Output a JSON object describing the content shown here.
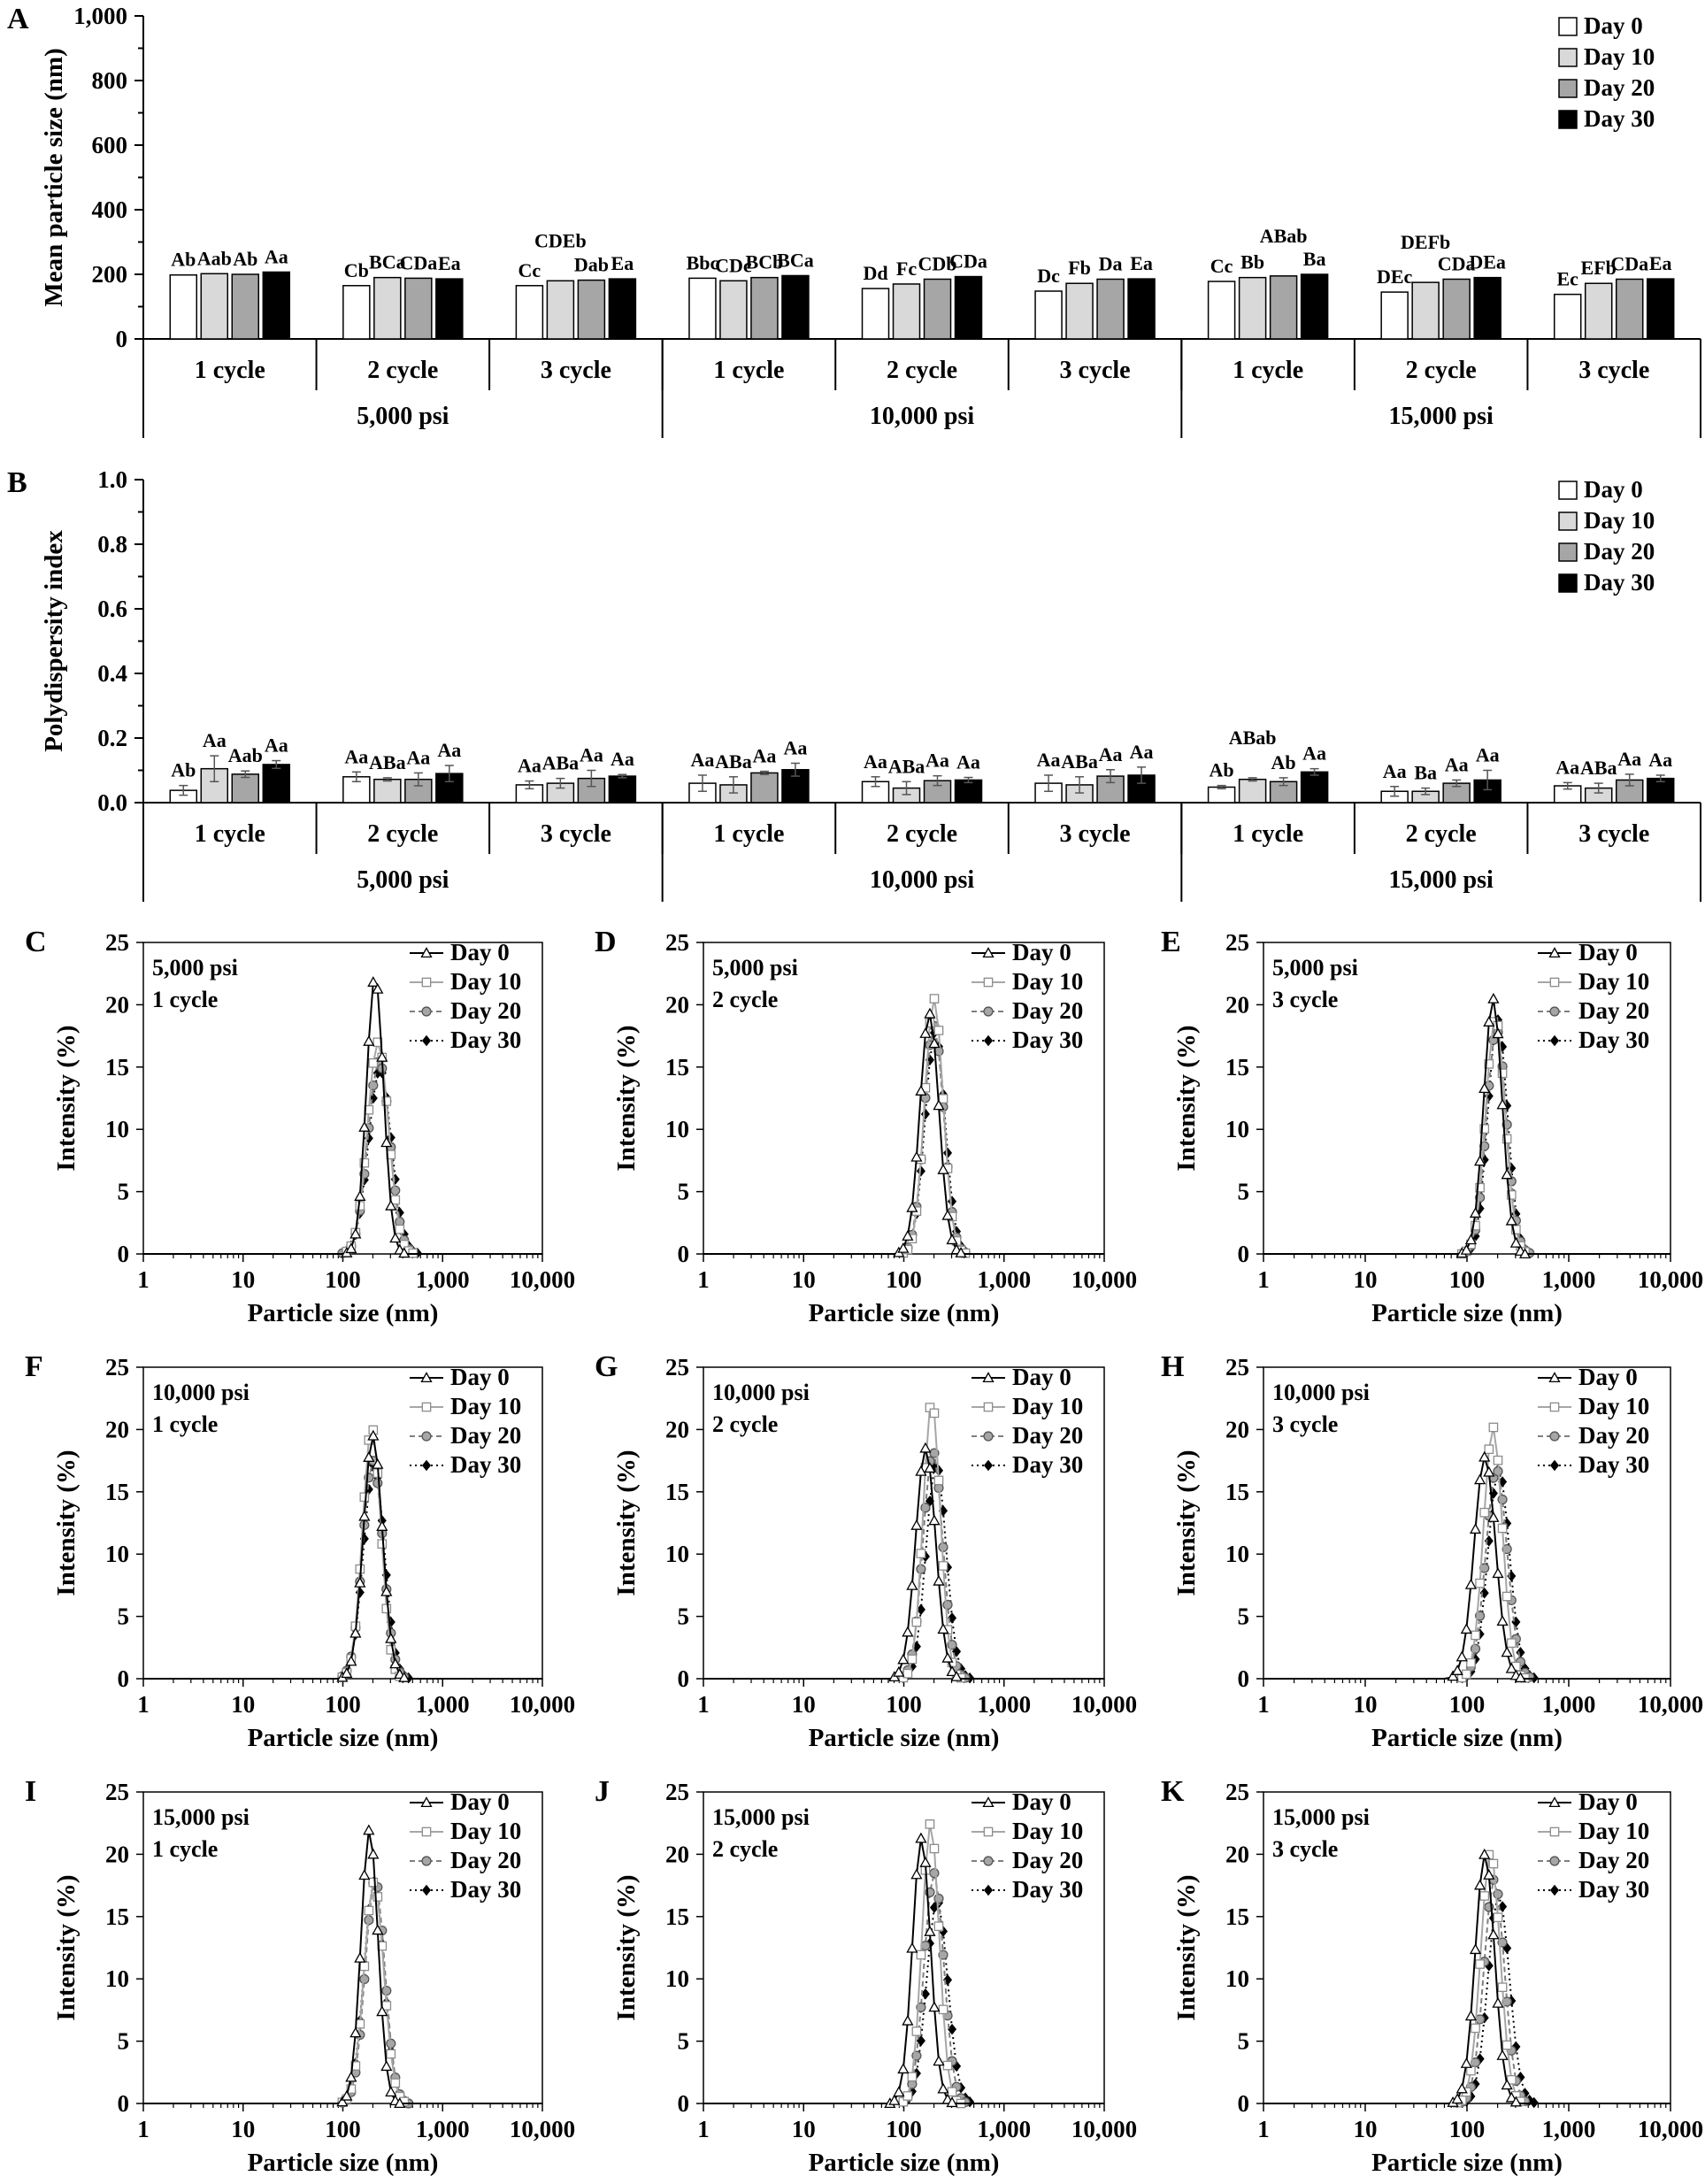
{
  "figure": {
    "bar_panels": [
      "A",
      "B"
    ],
    "line_panels": [
      "C",
      "D",
      "E",
      "F",
      "G",
      "H",
      "I",
      "J",
      "K"
    ]
  },
  "legend": [
    "Day 0",
    "Day 10",
    "Day 20",
    "Day 30"
  ],
  "colors": {
    "bar_fills": [
      "#ffffff",
      "#d9d9d9",
      "#a6a6a6",
      "#000000"
    ],
    "line_day0": "#000000",
    "line_day10": "#a6a6a6",
    "line_day20": "#7f7f7f",
    "line_day30": "#000000"
  },
  "chart_data": [
    {
      "panel": "A",
      "type": "bar",
      "ylabel": "Mean particle size (nm)",
      "ylim": [
        0,
        1000
      ],
      "yticks": [
        "0",
        "200",
        "400",
        "600",
        "800",
        "1,000"
      ],
      "cycles": [
        "1 cycle",
        "2 cycle",
        "3 cycle",
        "1 cycle",
        "2 cycle",
        "3 cycle",
        "1 cycle",
        "2 cycle",
        "3 cycle"
      ],
      "pressures": [
        "5,000 psi",
        "10,000 psi",
        "15,000 psi"
      ],
      "legend": "top-right",
      "series": [
        {
          "name": "Day 0",
          "values": [
            198,
            165,
            165,
            188,
            156,
            148,
            178,
            145,
            138
          ]
        },
        {
          "name": "Day 10",
          "values": [
            202,
            190,
            180,
            180,
            170,
            172,
            190,
            175,
            172
          ]
        },
        {
          "name": "Day 20",
          "values": [
            200,
            188,
            182,
            190,
            185,
            185,
            195,
            185,
            185
          ]
        },
        {
          "name": "Day 30",
          "values": [
            207,
            186,
            186,
            196,
            193,
            186,
            200,
            190,
            186
          ]
        }
      ],
      "labels": [
        [
          "Ab",
          "Aab",
          "Ab",
          "Aa"
        ],
        [
          "Cb",
          "BCa",
          "CDa",
          "Ea"
        ],
        [
          "Cc",
          "CDEb",
          "Dab",
          "Ea"
        ],
        [
          "Bbc",
          "CDc",
          "BCb",
          "BCa"
        ],
        [
          "Dd",
          "Fc",
          "CDb",
          "CDa"
        ],
        [
          "Dc",
          "Fb",
          "Da",
          "Ea"
        ],
        [
          "Cc",
          "Bb",
          "ABab",
          "Ba"
        ],
        [
          "DEc",
          "DEFb",
          "CDa",
          "DEa"
        ],
        [
          "Ec",
          "EFb",
          "CDa",
          "Ea"
        ]
      ]
    },
    {
      "panel": "B",
      "type": "bar",
      "ylabel": "Polydispersity index",
      "ylim": [
        0,
        1.0
      ],
      "yticks": [
        "0.0",
        "0.2",
        "0.4",
        "0.6",
        "0.8",
        "1.0"
      ],
      "cycles": [
        "1 cycle",
        "2 cycle",
        "3 cycle",
        "1 cycle",
        "2 cycle",
        "3 cycle",
        "1 cycle",
        "2 cycle",
        "3 cycle"
      ],
      "pressures": [
        "5,000 psi",
        "10,000 psi",
        "15,000 psi"
      ],
      "legend": "top-right",
      "series": [
        {
          "name": "Day 0",
          "values": [
            0.038,
            0.08,
            0.055,
            0.06,
            0.065,
            0.06,
            0.048,
            0.035,
            0.052
          ]
        },
        {
          "name": "Day 10",
          "values": [
            0.105,
            0.072,
            0.06,
            0.055,
            0.045,
            0.055,
            0.072,
            0.035,
            0.045
          ]
        },
        {
          "name": "Day 20",
          "values": [
            0.088,
            0.072,
            0.075,
            0.092,
            0.068,
            0.082,
            0.065,
            0.06,
            0.07
          ]
        },
        {
          "name": "Day 30",
          "values": [
            0.118,
            0.09,
            0.082,
            0.102,
            0.07,
            0.085,
            0.095,
            0.07,
            0.075
          ]
        }
      ],
      "errors": [
        [
          0.015,
          0.015,
          0.012,
          0.025,
          0.015,
          0.025,
          0.005,
          0.015,
          0.01
        ],
        [
          0.04,
          0.005,
          0.015,
          0.025,
          0.02,
          0.025,
          0.005,
          0.01,
          0.015
        ],
        [
          0.01,
          0.02,
          0.025,
          0.005,
          0.015,
          0.02,
          0.012,
          0.01,
          0.018
        ],
        [
          0.012,
          0.025,
          0.005,
          0.02,
          0.008,
          0.025,
          0.01,
          0.03,
          0.01
        ]
      ],
      "labels": [
        [
          "Ab",
          "Aa",
          "Aab",
          "Aa"
        ],
        [
          "Aa",
          "ABa",
          "Aa",
          "Aa"
        ],
        [
          "Aa",
          "ABa",
          "Aa",
          "Aa"
        ],
        [
          "Aa",
          "ABa",
          "Aa",
          "Aa"
        ],
        [
          "Aa",
          "ABa",
          "Aa",
          "Aa"
        ],
        [
          "Aa",
          "ABa",
          "Aa",
          "Aa"
        ],
        [
          "Ab",
          "ABab",
          "Ab",
          "Aa"
        ],
        [
          "Aa",
          "Ba",
          "Aa",
          "Aa"
        ],
        [
          "Aa",
          "ABa",
          "Aa",
          "Aa"
        ]
      ]
    },
    {
      "panel": "C",
      "type": "line",
      "pressure": "5,000 psi",
      "cycle": "1 cycle",
      "xlabel": "Particle size (nm)",
      "ylabel": "Intensity (%)",
      "xscale": "log",
      "xlim": [
        1,
        10000
      ],
      "ylim": [
        0,
        25
      ],
      "xticks": [
        "1",
        "10",
        "100",
        "1,000",
        "10,000"
      ],
      "yticks": [
        "0",
        "5",
        "10",
        "15",
        "20",
        "25"
      ],
      "legend": "top-right",
      "series": [
        {
          "name": "Day 0",
          "center": 210,
          "peak": 22.3,
          "width": 0.085
        },
        {
          "name": "Day 10",
          "center": 225,
          "peak": 17.0,
          "width": 0.105
        },
        {
          "name": "Day 20",
          "center": 230,
          "peak": 15.5,
          "width": 0.11
        },
        {
          "name": "Day 30",
          "center": 235,
          "peak": 14.8,
          "width": 0.115
        }
      ]
    },
    {
      "panel": "D",
      "type": "line",
      "pressure": "5,000 psi",
      "cycle": "2 cycle",
      "xlabel": "Particle size (nm)",
      "ylabel": "Intensity (%)",
      "xscale": "log",
      "xlim": [
        1,
        10000
      ],
      "ylim": [
        0,
        25
      ],
      "xticks": [
        "1",
        "10",
        "100",
        "1,000",
        "10,000"
      ],
      "yticks": [
        "0",
        "5",
        "10",
        "15",
        "20",
        "25"
      ],
      "legend": "top-right",
      "series": [
        {
          "name": "Day 0",
          "center": 180,
          "peak": 19.3,
          "width": 0.095
        },
        {
          "name": "Day 10",
          "center": 200,
          "peak": 20.5,
          "width": 0.092
        },
        {
          "name": "Day 20",
          "center": 200,
          "peak": 18.3,
          "width": 0.098
        },
        {
          "name": "Day 30",
          "center": 205,
          "peak": 17.8,
          "width": 0.1
        }
      ]
    },
    {
      "panel": "E",
      "type": "line",
      "pressure": "5,000 psi",
      "cycle": "3 cycle",
      "xlabel": "Particle size (nm)",
      "ylabel": "Intensity (%)",
      "xscale": "log",
      "xlim": [
        1,
        10000
      ],
      "ylim": [
        0,
        25
      ],
      "xticks": [
        "1",
        "10",
        "100",
        "1,000",
        "10,000"
      ],
      "yticks": [
        "0",
        "5",
        "10",
        "15",
        "20",
        "25"
      ],
      "legend": "top-right",
      "series": [
        {
          "name": "Day 0",
          "center": 180,
          "peak": 20.5,
          "width": 0.09
        },
        {
          "name": "Day 10",
          "center": 190,
          "peak": 19.0,
          "width": 0.095
        },
        {
          "name": "Day 20",
          "center": 195,
          "peak": 18.0,
          "width": 0.098
        },
        {
          "name": "Day 30",
          "center": 200,
          "peak": 18.8,
          "width": 0.096
        }
      ]
    },
    {
      "panel": "F",
      "type": "line",
      "pressure": "10,000 psi",
      "cycle": "1 cycle",
      "xlabel": "Particle size (nm)",
      "ylabel": "Intensity (%)",
      "xscale": "log",
      "xlim": [
        1,
        10000
      ],
      "ylim": [
        0,
        25
      ],
      "xticks": [
        "1",
        "10",
        "100",
        "1,000",
        "10,000"
      ],
      "yticks": [
        "0",
        "5",
        "10",
        "15",
        "20",
        "25"
      ],
      "legend": "top-right",
      "series": [
        {
          "name": "Day 0",
          "center": 200,
          "peak": 19.5,
          "width": 0.095
        },
        {
          "name": "Day 10",
          "center": 195,
          "peak": 20.2,
          "width": 0.092
        },
        {
          "name": "Day 20",
          "center": 200,
          "peak": 17.5,
          "width": 0.102
        },
        {
          "name": "Day 30",
          "center": 205,
          "peak": 17.2,
          "width": 0.104
        }
      ]
    },
    {
      "panel": "G",
      "type": "line",
      "pressure": "10,000 psi",
      "cycle": "2 cycle",
      "xlabel": "Particle size (nm)",
      "ylabel": "Intensity (%)",
      "xscale": "log",
      "xlim": [
        1,
        10000
      ],
      "ylim": [
        0,
        25
      ],
      "xticks": [
        "1",
        "10",
        "100",
        "1,000",
        "10,000"
      ],
      "yticks": [
        "0",
        "5",
        "10",
        "15",
        "20",
        "25"
      ],
      "legend": "top-right",
      "series": [
        {
          "name": "Day 0",
          "center": 165,
          "peak": 18.5,
          "width": 0.1
        },
        {
          "name": "Day 10",
          "center": 190,
          "peak": 22.3,
          "width": 0.085
        },
        {
          "name": "Day 20",
          "center": 195,
          "peak": 18.3,
          "width": 0.098
        },
        {
          "name": "Day 30",
          "center": 210,
          "peak": 17.3,
          "width": 0.1
        }
      ]
    },
    {
      "panel": "H",
      "type": "line",
      "pressure": "10,000 psi",
      "cycle": "3 cycle",
      "xlabel": "Particle size (nm)",
      "ylabel": "Intensity (%)",
      "xscale": "log",
      "xlim": [
        1,
        10000
      ],
      "ylim": [
        0,
        25
      ],
      "xticks": [
        "1",
        "10",
        "100",
        "1,000",
        "10,000"
      ],
      "yticks": [
        "0",
        "5",
        "10",
        "15",
        "20",
        "25"
      ],
      "legend": "top-right",
      "series": [
        {
          "name": "Day 0",
          "center": 150,
          "peak": 17.8,
          "width": 0.105
        },
        {
          "name": "Day 10",
          "center": 180,
          "peak": 20.2,
          "width": 0.092
        },
        {
          "name": "Day 20",
          "center": 195,
          "peak": 16.8,
          "width": 0.105
        },
        {
          "name": "Day 30",
          "center": 205,
          "peak": 16.8,
          "width": 0.105
        }
      ]
    },
    {
      "panel": "I",
      "type": "line",
      "pressure": "15,000 psi",
      "cycle": "1 cycle",
      "xlabel": "Particle size (nm)",
      "ylabel": "Intensity (%)",
      "xscale": "log",
      "xlim": [
        1,
        10000
      ],
      "ylim": [
        0,
        25
      ],
      "xticks": [
        "1",
        "10",
        "100",
        "1,000",
        "10,000"
      ],
      "yticks": [
        "0",
        "5",
        "10",
        "15",
        "20",
        "25"
      ],
      "legend": "top-right",
      "series": [
        {
          "name": "Day 0",
          "center": 185,
          "peak": 22.0,
          "width": 0.085
        },
        {
          "name": "Day 10",
          "center": 205,
          "peak": 17.8,
          "width": 0.098
        },
        {
          "name": "Day 20",
          "center": 210,
          "peak": 18.0,
          "width": 0.098
        },
        {
          "name": "Day 30",
          "center": 205,
          "peak": 17.8,
          "width": 0.1
        }
      ]
    },
    {
      "panel": "J",
      "type": "line",
      "pressure": "15,000 psi",
      "cycle": "2 cycle",
      "xlabel": "Particle size (nm)",
      "ylabel": "Intensity (%)",
      "xscale": "log",
      "xlim": [
        1,
        10000
      ],
      "ylim": [
        0,
        25
      ],
      "xticks": [
        "1",
        "10",
        "100",
        "1,000",
        "10,000"
      ],
      "yticks": [
        "0",
        "5",
        "10",
        "15",
        "20",
        "25"
      ],
      "legend": "top-right",
      "series": [
        {
          "name": "Day 0",
          "center": 150,
          "peak": 21.3,
          "width": 0.09
        },
        {
          "name": "Day 10",
          "center": 185,
          "peak": 22.5,
          "width": 0.085
        },
        {
          "name": "Day 20",
          "center": 200,
          "peak": 18.5,
          "width": 0.098
        },
        {
          "name": "Day 30",
          "center": 215,
          "peak": 16.3,
          "width": 0.105
        }
      ]
    },
    {
      "panel": "K",
      "type": "line",
      "pressure": "15,000 psi",
      "cycle": "3 cycle",
      "xlabel": "Particle size (nm)",
      "ylabel": "Intensity (%)",
      "xscale": "log",
      "xlim": [
        1,
        10000
      ],
      "ylim": [
        0,
        25
      ],
      "xticks": [
        "1",
        "10",
        "100",
        "1,000",
        "10,000"
      ],
      "yticks": [
        "0",
        "5",
        "10",
        "15",
        "20",
        "25"
      ],
      "legend": "top-right",
      "series": [
        {
          "name": "Day 0",
          "center": 150,
          "peak": 20.0,
          "width": 0.095
        },
        {
          "name": "Day 10",
          "center": 170,
          "peak": 20.2,
          "width": 0.095
        },
        {
          "name": "Day 20",
          "center": 185,
          "peak": 18.0,
          "width": 0.1
        },
        {
          "name": "Day 30",
          "center": 205,
          "peak": 16.8,
          "width": 0.105
        }
      ]
    }
  ]
}
